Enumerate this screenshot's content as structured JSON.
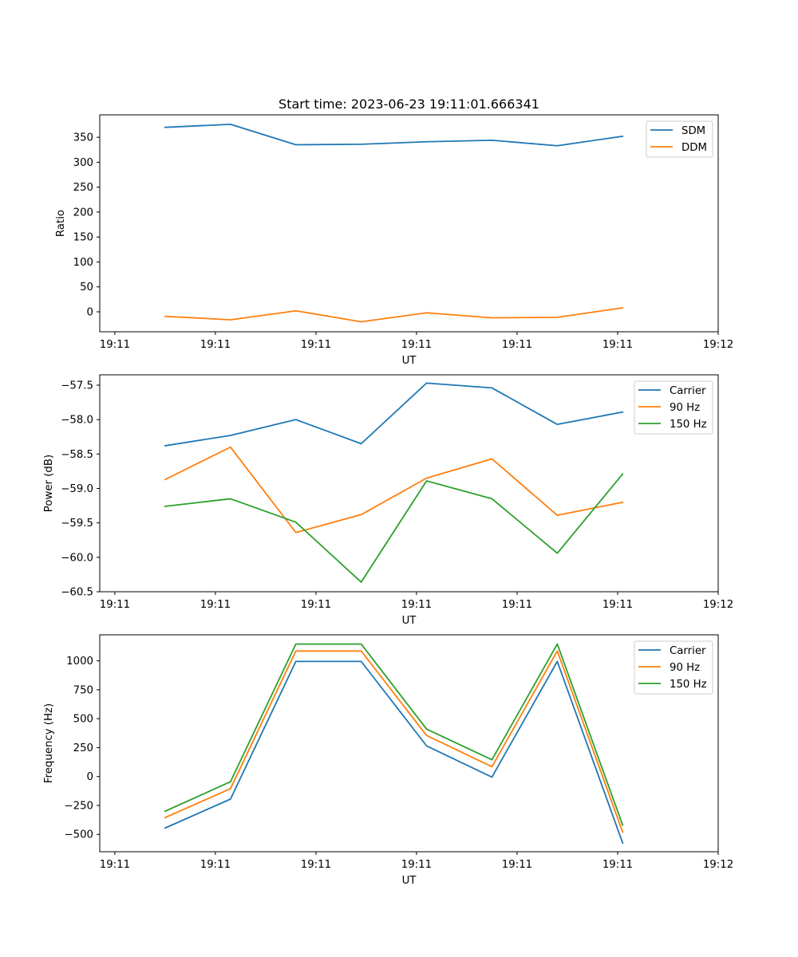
{
  "figure": {
    "title": "Start time: 2023-06-23 19:11:01.666341"
  },
  "chart_data": [
    {
      "type": "line",
      "title": "Start time: 2023-06-23 19:11:01.666341",
      "xlabel": "UT",
      "ylabel": "Ratio",
      "x_tick_labels": [
        "19:11",
        "19:11",
        "19:11",
        "19:11",
        "19:11",
        "19:11",
        "19:12"
      ],
      "x": [
        0.5,
        1.15,
        1.8,
        2.45,
        3.1,
        3.75,
        4.4,
        5.05
      ],
      "xlim": [
        -0.15,
        6.0
      ],
      "ylim": [
        -40,
        395
      ],
      "yticks": [
        0,
        50,
        100,
        150,
        200,
        250,
        300,
        350
      ],
      "legend_position": "upper right",
      "series": [
        {
          "name": "SDM",
          "color": "#1f77b4",
          "values": [
            370,
            376,
            335,
            336,
            341,
            344,
            333,
            352
          ]
        },
        {
          "name": "DDM",
          "color": "#ff7f0e",
          "values": [
            -9,
            -16,
            2,
            -20,
            -2,
            -12,
            -11,
            8
          ]
        }
      ]
    },
    {
      "type": "line",
      "title": "",
      "xlabel": "UT",
      "ylabel": "Power (dB)",
      "x_tick_labels": [
        "19:11",
        "19:11",
        "19:11",
        "19:11",
        "19:11",
        "19:11",
        "19:12"
      ],
      "x": [
        0.5,
        1.15,
        1.8,
        2.45,
        3.1,
        3.75,
        4.4,
        5.05
      ],
      "xlim": [
        -0.15,
        6.0
      ],
      "ylim": [
        -60.5,
        -57.35
      ],
      "yticks": [
        -60.5,
        -60.0,
        -59.5,
        -59.0,
        -58.5,
        -58.0,
        -57.5
      ],
      "ytick_labels": [
        "−60.5",
        "−60.0",
        "−59.5",
        "−59.0",
        "−58.5",
        "−58.0",
        "−57.5"
      ],
      "legend_position": "upper right",
      "series": [
        {
          "name": "Carrier",
          "color": "#1f77b4",
          "values": [
            -58.38,
            -58.23,
            -58.0,
            -58.35,
            -57.47,
            -57.54,
            -58.07,
            -57.89
          ]
        },
        {
          "name": "90 Hz",
          "color": "#ff7f0e",
          "values": [
            -58.87,
            -58.4,
            -59.64,
            -59.38,
            -58.85,
            -58.57,
            -59.39,
            -59.2
          ]
        },
        {
          "name": "150 Hz",
          "color": "#2ca02c",
          "values": [
            -59.26,
            -59.15,
            -59.49,
            -60.36,
            -58.89,
            -59.15,
            -59.94,
            -58.79
          ]
        }
      ]
    },
    {
      "type": "line",
      "title": "",
      "xlabel": "UT",
      "ylabel": "Frequency (Hz)",
      "x_tick_labels": [
        "19:11",
        "19:11",
        "19:11",
        "19:11",
        "19:11",
        "19:11",
        "19:12"
      ],
      "x": [
        0.5,
        1.15,
        1.8,
        2.45,
        3.1,
        3.75,
        4.4,
        5.05
      ],
      "xlim": [
        -0.15,
        6.0
      ],
      "ylim": [
        -650,
        1225
      ],
      "yticks": [
        -500,
        -250,
        0,
        250,
        500,
        750,
        1000
      ],
      "ytick_labels": [
        "−500",
        "−250",
        "0",
        "250",
        "500",
        "750",
        "1000"
      ],
      "legend_position": "upper right",
      "series": [
        {
          "name": "Carrier",
          "color": "#1f77b4",
          "values": [
            -445,
            -195,
            995,
            995,
            265,
            -5,
            995,
            -575
          ]
        },
        {
          "name": "90 Hz",
          "color": "#ff7f0e",
          "values": [
            -355,
            -105,
            1085,
            1085,
            355,
            85,
            1085,
            -480
          ]
        },
        {
          "name": "150 Hz",
          "color": "#2ca02c",
          "values": [
            -300,
            -45,
            1145,
            1145,
            410,
            145,
            1145,
            -420
          ]
        }
      ]
    }
  ]
}
